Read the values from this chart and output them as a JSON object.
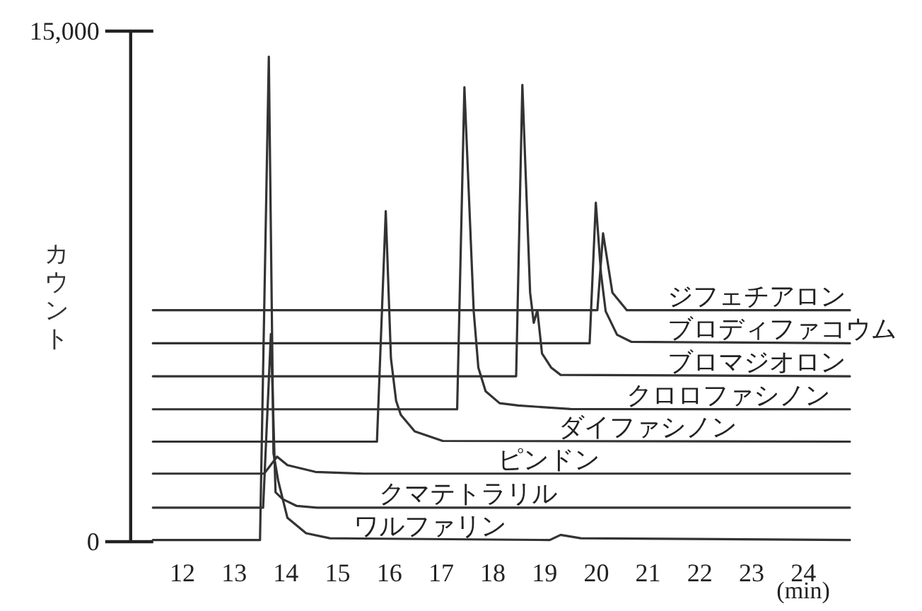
{
  "chart_data": {
    "type": "line",
    "xlabel": "(min)",
    "ylabel": "カウント",
    "xlim": [
      11,
      24.9
    ],
    "ylim": [
      0,
      15000
    ],
    "xticks": [
      12,
      13,
      14,
      15,
      16,
      17,
      18,
      19,
      20,
      21,
      22,
      23,
      24
    ],
    "yticks": [
      0,
      {
        "value": 15000,
        "label": "15,000"
      }
    ],
    "grid": false,
    "marker": "none",
    "line_style": "solid",
    "series": [
      {
        "name": "ジフェチアロン",
        "color": "#333333",
        "x": [
          11.43,
          20.02,
          20.13,
          20.31,
          20.59,
          24.9
        ],
        "values": [
          6800,
          6800,
          9060,
          7320,
          6800,
          6800
        ]
      },
      {
        "name": "ブロディファコウム",
        "color": "#333333",
        "x": [
          11.43,
          19.87,
          19.99,
          20.09,
          20.18,
          20.4,
          20.68,
          24.9
        ],
        "values": [
          5830,
          5830,
          9960,
          7880,
          6770,
          6080,
          5870,
          5830
        ]
      },
      {
        "name": "ブロマジオロン",
        "color": "#333333",
        "x": [
          11.43,
          18.45,
          18.57,
          18.72,
          18.79,
          18.86,
          18.95,
          19.13,
          19.31,
          24.9
        ],
        "values": [
          4860,
          4860,
          13420,
          7320,
          6430,
          6800,
          5530,
          5110,
          4900,
          4860
        ]
      },
      {
        "name": "クロロファシノン",
        "color": "#333333",
        "x": [
          11.43,
          17.31,
          17.45,
          17.63,
          17.72,
          17.86,
          18.13,
          18.49,
          19.5,
          24.9
        ],
        "values": [
          3890,
          3890,
          13350,
          6770,
          5110,
          4420,
          4070,
          4000,
          3900,
          3890
        ]
      },
      {
        "name": "ダイファシノン",
        "color": "#333333",
        "x": [
          11.43,
          15.76,
          15.93,
          16.03,
          16.13,
          16.22,
          16.49,
          17.03,
          24.9
        ],
        "values": [
          2940,
          2940,
          9710,
          5390,
          4140,
          3730,
          3240,
          2960,
          2940
        ]
      },
      {
        "name": "ピンドン",
        "color": "#333333",
        "x": [
          11.43,
          13.58,
          13.83,
          14.03,
          14.57,
          15.5,
          24.9
        ],
        "values": [
          2000,
          2000,
          2500,
          2250,
          2050,
          2000,
          2000
        ]
      },
      {
        "name": "クマテトラリル",
        "color": "#333333",
        "x": [
          11.43,
          13.56,
          13.71,
          13.8,
          13.94,
          14.21,
          14.6,
          24.9
        ],
        "values": [
          1000,
          1000,
          6100,
          1450,
          1250,
          1050,
          1000,
          1000
        ]
      },
      {
        "name": "ワルファリン",
        "color": "#333333",
        "x": [
          11.43,
          13.5,
          13.67,
          13.76,
          13.85,
          14.03,
          14.39,
          14.85,
          19.1,
          19.31,
          19.7,
          24.9
        ],
        "values": [
          50,
          50,
          14250,
          2600,
          1800,
          700,
          250,
          100,
          50,
          200,
          100,
          50
        ]
      }
    ]
  }
}
